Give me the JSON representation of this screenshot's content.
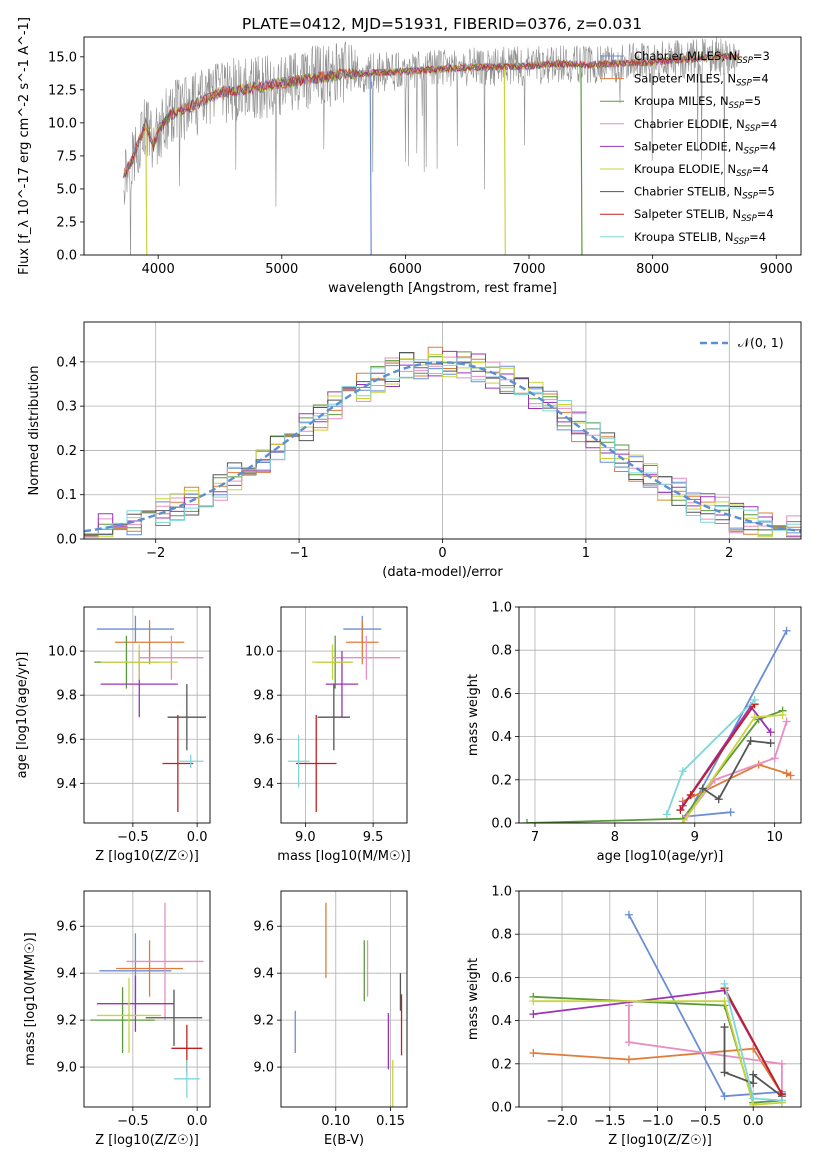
{
  "figure_title": "PLATE=0412, MJD=51931, FIBERID=0376, z=0.031",
  "colors": [
    "#6b8dd6",
    "#e07b39",
    "#5b9a3a",
    "#e88ec3",
    "#9c33b8",
    "#c9d43b",
    "#555555",
    "#c21f1f",
    "#7fd6d8",
    "#8a8a8a"
  ],
  "chart_data": [
    {
      "id": "spectrum",
      "type": "line",
      "title": "PLATE=0412, MJD=51931, FIBERID=0376, z=0.031",
      "xlabel": "wavelength [Angstrom, rest frame]",
      "ylabel": "Flux [f_λ 10^-17 erg cm^-2 s^-1 A^-1]",
      "xlim": [
        3400,
        9200
      ],
      "ylim": [
        0,
        16.5
      ],
      "xticks": [
        4000,
        5000,
        6000,
        7000,
        8000,
        9000
      ],
      "yticks": [
        0.0,
        2.5,
        5.0,
        7.5,
        10.0,
        12.5,
        15.0
      ],
      "grid": false,
      "legend_position": "right",
      "data_range": [
        3720,
        8700
      ],
      "continuum": [
        [
          3720,
          6.0
        ],
        [
          3780,
          7.0
        ],
        [
          3840,
          8.5
        ],
        [
          3900,
          10.0
        ],
        [
          3960,
          8.2
        ],
        [
          4000,
          9.4
        ],
        [
          4100,
          10.6
        ],
        [
          4300,
          11.4
        ],
        [
          4500,
          12.3
        ],
        [
          4800,
          12.7
        ],
        [
          5000,
          13.0
        ],
        [
          5200,
          13.3
        ],
        [
          5500,
          13.7
        ],
        [
          5800,
          13.8
        ],
        [
          6000,
          13.9
        ],
        [
          6500,
          14.2
        ],
        [
          7000,
          14.3
        ],
        [
          7200,
          14.5
        ],
        [
          7500,
          14.4
        ],
        [
          8000,
          14.6
        ],
        [
          8500,
          15.0
        ],
        [
          8700,
          15.0
        ]
      ],
      "dropouts": [
        {
          "series": "Chabrier MILES, N_SSP=3",
          "x": 5715
        },
        {
          "series": "Kroupa MILES, N_SSP=5",
          "x": 7420
        },
        {
          "series": "Kroupa ELODIE, N_SSP=4",
          "x": 6800
        },
        {
          "series": "Kroupa ELODIE, N_SSP=4",
          "x": 3900
        }
      ],
      "legend": [
        {
          "label": "Chabrier MILES, N",
          "sub": "SSP",
          "tail": "=3"
        },
        {
          "label": "Salpeter MILES, N",
          "sub": "SSP",
          "tail": "=4"
        },
        {
          "label": "Kroupa MILES, N",
          "sub": "SSP",
          "tail": "=5"
        },
        {
          "label": "Chabrier ELODIE, N",
          "sub": "SSP",
          "tail": "=4"
        },
        {
          "label": "Salpeter ELODIE, N",
          "sub": "SSP",
          "tail": "=4"
        },
        {
          "label": "Kroupa ELODIE, N",
          "sub": "SSP",
          "tail": "=4"
        },
        {
          "label": "Chabrier STELIB, N",
          "sub": "SSP",
          "tail": "=5"
        },
        {
          "label": "Salpeter STELIB, N",
          "sub": "SSP",
          "tail": "=4"
        },
        {
          "label": "Kroupa STELIB, N",
          "sub": "SSP",
          "tail": "=4"
        }
      ]
    },
    {
      "id": "residuals",
      "type": "line",
      "xlabel": "(data-model)/error",
      "ylabel": "Normed distribution",
      "xlim": [
        -2.5,
        2.5
      ],
      "ylim": [
        0,
        0.49
      ],
      "xticks": [
        -2,
        -1,
        0,
        1,
        2
      ],
      "yticks": [
        0.0,
        0.1,
        0.2,
        0.3,
        0.4
      ],
      "grid": true,
      "legend_position": "top-right",
      "legend_label": "𝒩(0, 1)",
      "gaussian": {
        "mean": 0,
        "sigma": 1
      },
      "bin_width": 0.1
    },
    {
      "id": "age-z",
      "type": "scatter",
      "xlabel": "Z [log10(Z/Z☉)]",
      "ylabel": "age [log10(age/yr)]",
      "xlim": [
        -0.88,
        0.1
      ],
      "ylim": [
        9.22,
        10.2
      ],
      "xticks": [
        -0.5,
        0.0
      ],
      "yticks": [
        9.4,
        9.6,
        9.8,
        10.0
      ],
      "points": [
        {
          "x": -0.48,
          "y": 10.1,
          "xerr": 0.3,
          "yerr": 0.06
        },
        {
          "x": -0.37,
          "y": 10.04,
          "xerr": 0.27,
          "yerr": 0.1
        },
        {
          "x": -0.55,
          "y": 9.95,
          "xerr": 0.25,
          "yerr": 0.12
        },
        {
          "x": -0.2,
          "y": 9.97,
          "xerr": 0.25,
          "yerr": 0.1
        },
        {
          "x": -0.45,
          "y": 9.85,
          "xerr": 0.3,
          "yerr": 0.15
        },
        {
          "x": -0.45,
          "y": 9.95,
          "xerr": 0.3,
          "yerr": 0.08
        },
        {
          "x": -0.08,
          "y": 9.7,
          "xerr": 0.15,
          "yerr": 0.15
        },
        {
          "x": -0.15,
          "y": 9.49,
          "xerr": 0.12,
          "yerr": 0.22
        },
        {
          "x": -0.05,
          "y": 9.5,
          "xerr": 0.1,
          "yerr": 0.03
        }
      ]
    },
    {
      "id": "age-mass",
      "type": "scatter",
      "xlabel": "mass [log10(M/M☉)]",
      "ylabel": "",
      "xlim": [
        8.82,
        9.75
      ],
      "ylim": [
        9.22,
        10.2
      ],
      "xticks": [
        9.0,
        9.5
      ],
      "yticks": [
        9.4,
        9.6,
        9.8,
        10.0
      ],
      "points": [
        {
          "x": 9.42,
          "y": 10.1,
          "xerr": 0.14,
          "yerr": 0.06
        },
        {
          "x": 9.42,
          "y": 10.04,
          "xerr": 0.12,
          "yerr": 0.1
        },
        {
          "x": 9.22,
          "y": 9.95,
          "xerr": 0.13,
          "yerr": 0.12
        },
        {
          "x": 9.45,
          "y": 9.97,
          "xerr": 0.25,
          "yerr": 0.1
        },
        {
          "x": 9.27,
          "y": 9.85,
          "xerr": 0.12,
          "yerr": 0.15
        },
        {
          "x": 9.2,
          "y": 9.95,
          "xerr": 0.15,
          "yerr": 0.08
        },
        {
          "x": 9.21,
          "y": 9.7,
          "xerr": 0.12,
          "yerr": 0.15
        },
        {
          "x": 9.08,
          "y": 9.49,
          "xerr": 0.15,
          "yerr": 0.22
        },
        {
          "x": 8.95,
          "y": 9.5,
          "xerr": 0.08,
          "yerr": 0.12
        }
      ]
    },
    {
      "id": "massweight-age",
      "type": "line",
      "xlabel": "age [log10(age/yr)]",
      "ylabel": "mass weight",
      "xlim": [
        6.8,
        10.33
      ],
      "ylim": [
        0,
        1.0
      ],
      "xticks": [
        7,
        8,
        9,
        10
      ],
      "yticks": [
        0.0,
        0.2,
        0.4,
        0.6,
        0.8,
        1.0
      ],
      "grid": true,
      "series": [
        {
          "x": [
            9.45,
            8.9,
            10.15
          ],
          "y": [
            0.05,
            0.03,
            0.89
          ]
        },
        {
          "x": [
            8.85,
            9.8,
            10.15,
            10.2
          ],
          "y": [
            0.1,
            0.27,
            0.23,
            0.22
          ]
        },
        {
          "x": [
            6.9,
            8.85,
            9.8,
            10.1
          ],
          "y": [
            0.0,
            0.02,
            0.48,
            0.52
          ]
        },
        {
          "x": [
            8.9,
            9.25,
            10.0,
            10.15
          ],
          "y": [
            0.03,
            0.2,
            0.3,
            0.47
          ]
        },
        {
          "x": [
            8.85,
            9.7,
            9.95
          ],
          "y": [
            0.08,
            0.54,
            0.42
          ]
        },
        {
          "x": [
            8.85,
            9.75,
            10.1
          ],
          "y": [
            0.0,
            0.49,
            0.5
          ]
        },
        {
          "x": [
            9.1,
            9.3,
            9.7,
            9.95
          ],
          "y": [
            0.16,
            0.11,
            0.38,
            0.37
          ]
        },
        {
          "x": [
            8.82,
            8.95,
            9.75
          ],
          "y": [
            0.06,
            0.13,
            0.55
          ]
        },
        {
          "x": [
            8.65,
            8.85,
            9.75
          ],
          "y": [
            0.04,
            0.24,
            0.57
          ]
        }
      ]
    },
    {
      "id": "mass-z",
      "type": "scatter",
      "xlabel": "Z [log10(Z/Z☉)]",
      "ylabel": "mass [log10(M/M☉)]",
      "xlim": [
        -0.88,
        0.1
      ],
      "ylim": [
        8.83,
        9.75
      ],
      "xticks": [
        -0.5,
        0.0
      ],
      "yticks": [
        9.0,
        9.2,
        9.4,
        9.6
      ],
      "points": [
        {
          "x": -0.48,
          "y": 9.41,
          "xerr": 0.28,
          "yerr": 0.16
        },
        {
          "x": -0.37,
          "y": 9.42,
          "xerr": 0.26,
          "yerr": 0.12
        },
        {
          "x": -0.58,
          "y": 9.2,
          "xerr": 0.25,
          "yerr": 0.14
        },
        {
          "x": -0.25,
          "y": 9.45,
          "xerr": 0.3,
          "yerr": 0.25
        },
        {
          "x": -0.48,
          "y": 9.27,
          "xerr": 0.3,
          "yerr": 0.12
        },
        {
          "x": -0.53,
          "y": 9.22,
          "xerr": 0.25,
          "yerr": 0.16
        },
        {
          "x": -0.18,
          "y": 9.21,
          "xerr": 0.22,
          "yerr": 0.12
        },
        {
          "x": -0.08,
          "y": 9.08,
          "xerr": 0.12,
          "yerr": 0.1
        },
        {
          "x": -0.08,
          "y": 8.95,
          "xerr": 0.1,
          "yerr": 0.08
        }
      ]
    },
    {
      "id": "mass-ebv",
      "type": "scatter",
      "xlabel": "E(B-V)",
      "ylabel": "",
      "xlim": [
        0.05,
        0.165
      ],
      "ylim": [
        8.83,
        9.75
      ],
      "xticks": [
        0.1,
        0.15
      ],
      "yticks": [
        9.0,
        9.2,
        9.4,
        9.6
      ],
      "points": [
        {
          "x": 0.063,
          "y": 9.15,
          "xerr": 0.0,
          "yerr": 0.09
        },
        {
          "x": 0.091,
          "y": 9.54,
          "xerr": 0.0,
          "yerr": 0.16
        },
        {
          "x": 0.126,
          "y": 9.41,
          "xerr": 0.0,
          "yerr": 0.13
        },
        {
          "x": 0.129,
          "y": 9.42,
          "xerr": 0.0,
          "yerr": 0.12
        },
        {
          "x": 0.148,
          "y": 9.11,
          "xerr": 0.0,
          "yerr": 0.12
        },
        {
          "x": 0.152,
          "y": 8.93,
          "xerr": 0.0,
          "yerr": 0.1
        },
        {
          "x": 0.159,
          "y": 9.32,
          "xerr": 0.0,
          "yerr": 0.08
        },
        {
          "x": 0.16,
          "y": 9.18,
          "xerr": 0.0,
          "yerr": 0.13
        }
      ]
    },
    {
      "id": "massweight-z",
      "type": "line",
      "xlabel": "Z [log10(Z/Z☉)]",
      "ylabel": "mass weight",
      "xlim": [
        -2.45,
        0.5
      ],
      "ylim": [
        0,
        1.0
      ],
      "xticks": [
        -2.0,
        -1.5,
        -1.0,
        -0.5,
        0.0
      ],
      "yticks": [
        0.0,
        0.2,
        0.4,
        0.6,
        0.8,
        1.0
      ],
      "grid": true,
      "series": [
        {
          "x": [
            -1.3,
            -0.3,
            0.3
          ],
          "y": [
            0.89,
            0.05,
            0.07
          ]
        },
        {
          "x": [
            -2.3,
            -1.3,
            0.0,
            0.3
          ],
          "y": [
            0.25,
            0.22,
            0.27,
            0.06
          ]
        },
        {
          "x": [
            -2.3,
            -0.3,
            0.0,
            0.3
          ],
          "y": [
            0.51,
            0.47,
            0.02,
            0.03
          ]
        },
        {
          "x": [
            -1.3,
            -1.3,
            0.3,
            0.3
          ],
          "y": [
            0.47,
            0.3,
            0.2,
            0.03
          ]
        },
        {
          "x": [
            -2.3,
            -0.3,
            0.3
          ],
          "y": [
            0.43,
            0.54,
            0.06
          ]
        },
        {
          "x": [
            -2.3,
            -0.3,
            0.0,
            0.3
          ],
          "y": [
            0.49,
            0.49,
            0.01,
            0.02
          ]
        },
        {
          "x": [
            -0.3,
            -0.3,
            0.0,
            0.0,
            0.3
          ],
          "y": [
            0.37,
            0.16,
            0.11,
            0.15,
            0.05
          ]
        },
        {
          "x": [
            -0.3,
            0.3
          ],
          "y": [
            0.55,
            0.06
          ]
        },
        {
          "x": [
            -0.3,
            0.0,
            0.3
          ],
          "y": [
            0.57,
            0.04,
            0.03
          ]
        }
      ]
    }
  ]
}
